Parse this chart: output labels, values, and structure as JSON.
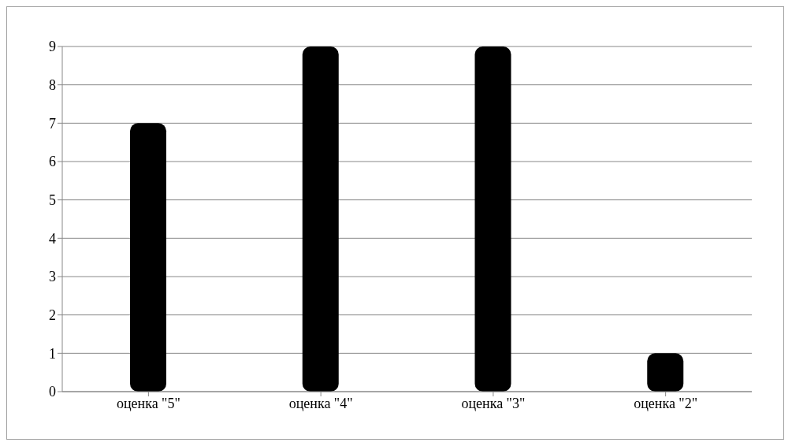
{
  "chart_data": {
    "type": "bar",
    "categories": [
      "оценка \"5\"",
      "оценка \"4\"",
      "оценка \"3\"",
      "оценка \"2\""
    ],
    "values": [
      7,
      9,
      9,
      1
    ],
    "color": "#000000",
    "ylim": [
      0,
      9
    ],
    "yticks": [
      0,
      1,
      2,
      3,
      4,
      5,
      6,
      7,
      8,
      9
    ],
    "grid": "y"
  }
}
